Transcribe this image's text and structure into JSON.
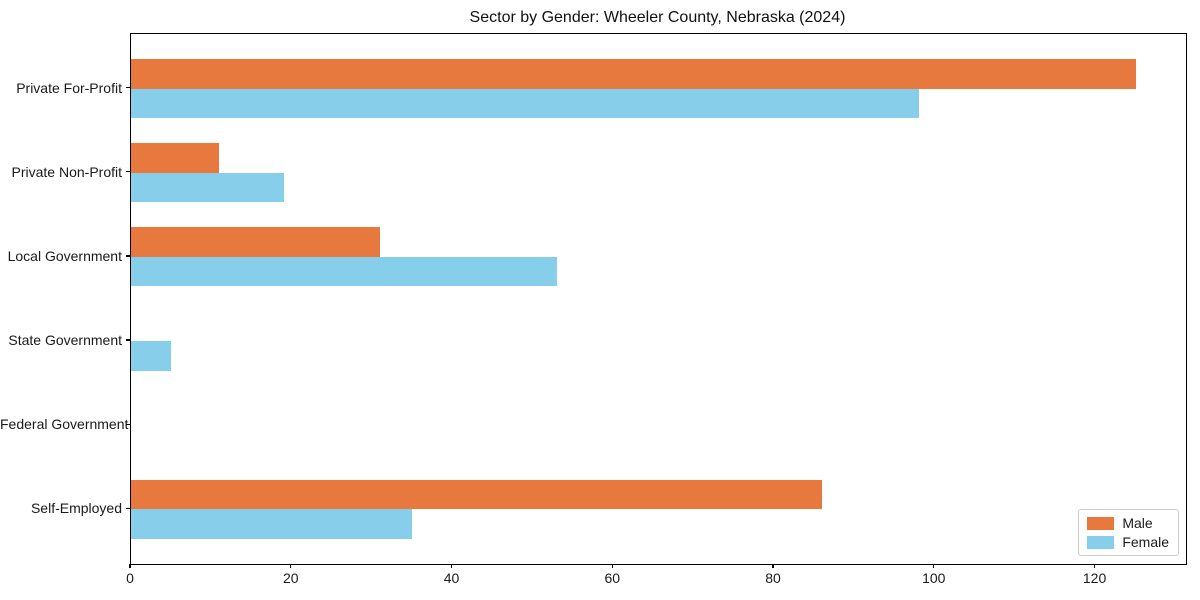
{
  "title": "Sector by Gender: Wheeler County, Nebraska (2024)",
  "chart_data": {
    "type": "bar",
    "orientation": "horizontal",
    "title": "Sector by Gender: Wheeler County, Nebraska (2024)",
    "categories": [
      "Private For-Profit",
      "Private Non-Profit",
      "Local Government",
      "State Government",
      "Federal Government",
      "Self-Employed"
    ],
    "series": [
      {
        "name": "Male",
        "color": "#e8793e",
        "values": [
          125,
          11,
          31,
          0,
          0,
          86
        ]
      },
      {
        "name": "Female",
        "color": "#87ceeb",
        "values": [
          98,
          19,
          53,
          5,
          0,
          35
        ]
      }
    ],
    "xlabel": "",
    "ylabel": "",
    "xlim": [
      0,
      131.25
    ],
    "xticks": [
      0,
      20,
      40,
      60,
      80,
      100,
      120
    ],
    "xtick_labels": [
      "0",
      "20",
      "40",
      "60",
      "80",
      "100",
      "120"
    ],
    "bar_group_fraction": 0.7,
    "legend_position": "lower right",
    "grid": false,
    "axis_color": "#000000",
    "background_color": "#ffffff"
  }
}
